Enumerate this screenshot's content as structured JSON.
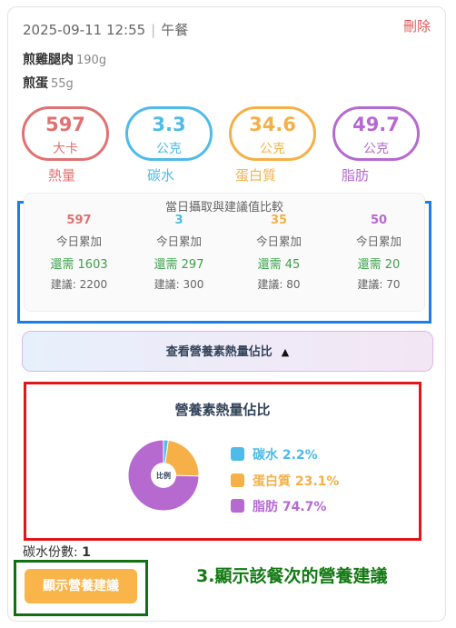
{
  "meal": {
    "datetime": "2025-09-11 12:55",
    "type": "午餐",
    "delete_label": "刪除",
    "foods": [
      {
        "name": "煎雞腿肉",
        "weight": "190g"
      },
      {
        "name": "煎蛋",
        "weight": "55g"
      }
    ]
  },
  "macros": [
    {
      "value": "597",
      "unit": "大卡",
      "label": "熱量",
      "color": "#e07272"
    },
    {
      "value": "3.3",
      "unit": "公克",
      "label": "碳水",
      "color": "#4ebbea"
    },
    {
      "value": "34.6",
      "unit": "公克",
      "label": "蛋白質",
      "color": "#f5b047"
    },
    {
      "value": "49.7",
      "unit": "公克",
      "label": "脂肪",
      "color": "#b66ad0"
    }
  ],
  "comparison": {
    "title": "當日攝取與建議值比較",
    "columns": [
      {
        "intake": "597",
        "intake_label": "今日累加",
        "need": "還需 1603",
        "suggest": "建議: 2200"
      },
      {
        "intake": "3",
        "intake_label": "今日累加",
        "need": "還需 297",
        "suggest": "建議: 300"
      },
      {
        "intake": "35",
        "intake_label": "今日累加",
        "need": "還需 45",
        "suggest": "建議: 80"
      },
      {
        "intake": "50",
        "intake_label": "今日累加",
        "need": "還需 20",
        "suggest": "建議: 70"
      }
    ]
  },
  "toggle": {
    "label": "查看營養素熱量佔比",
    "arrow": "▲"
  },
  "chart_data": {
    "type": "pie",
    "title": "營養素熱量佔比",
    "center_label": "比例",
    "categories": [
      "碳水",
      "蛋白質",
      "脂肪"
    ],
    "values": [
      2.2,
      23.1,
      74.7
    ],
    "colors": [
      "#4ebbea",
      "#f5b047",
      "#b66ad0"
    ],
    "legend": [
      "碳水 2.2%",
      "蛋白質 23.1%",
      "脂肪 74.7%"
    ],
    "legend_position": "right"
  },
  "carb_portion": {
    "label": "碳水份數:",
    "value": "1"
  },
  "advice_button": {
    "label": "顯示營養建議"
  },
  "annotation": {
    "text": "3.顯示該餐次的營養建議"
  }
}
